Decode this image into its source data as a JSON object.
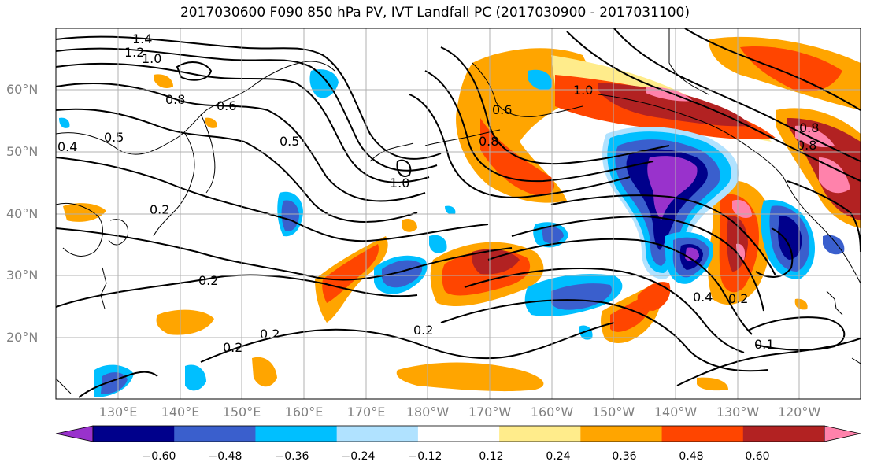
{
  "title": "2017030600 F090 850 hPa PV, IVT Landfall PC (2017030900 - 2017031100)",
  "lat_labels": [
    "60°N",
    "50°N",
    "40°N",
    "30°N",
    "20°N"
  ],
  "lon_labels": [
    "130°E",
    "140°E",
    "150°E",
    "160°E",
    "170°E",
    "180°W",
    "170°W",
    "160°W",
    "150°W",
    "140°W",
    "130°W",
    "120°W"
  ],
  "contour_labels": [
    "1.4",
    "1.2",
    "1.0",
    "0.8",
    "0.6",
    "0.5",
    "0.4",
    "0.2",
    "0.2",
    "0.2",
    "0.2",
    "0.2",
    "1.0",
    "1.0",
    "0.8",
    "0.8",
    "0.8",
    "0.4",
    "0.2",
    "0.1",
    "0.6",
    "0.5"
  ],
  "colorbar": {
    "ticks": [
      "−0.60",
      "−0.48",
      "−0.36",
      "−0.24",
      "−0.12",
      "0.12",
      "0.24",
      "0.36",
      "0.48",
      "0.60"
    ],
    "colors": [
      "#9932cc",
      "#00008b",
      "#3a5fcd",
      "#00bfff",
      "#b0e2ff",
      "#ffffff",
      "#ffec8b",
      "#ffa500",
      "#ff4500",
      "#b22222",
      "#ff82ab"
    ]
  }
}
